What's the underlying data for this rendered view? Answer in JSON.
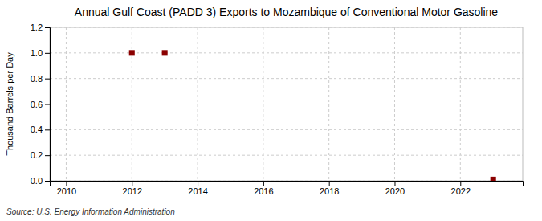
{
  "chart_data": {
    "type": "scatter",
    "title": "Annual Gulf Coast (PADD 3) Exports to Mozambique of Conventional Motor Gasoline",
    "ylabel": "Thousand Barrels per Day",
    "source": "Source: U.S. Energy Information Administration",
    "x": [
      2012,
      2013,
      2023
    ],
    "values": [
      1.0,
      1.0,
      0.01
    ],
    "xlim": [
      2009.5,
      2023.9
    ],
    "xticks": [
      2010,
      2012,
      2014,
      2016,
      2018,
      2020,
      2022
    ],
    "ylim": [
      0.0,
      1.2
    ],
    "yticks": [
      {
        "value": 0.0,
        "label": "0.0"
      },
      0.2,
      0.4,
      0.6,
      0.8,
      {
        "value": 1.0,
        "label": "1.0"
      },
      1.2
    ],
    "color": "#8B0000",
    "marker": "square",
    "grid": true
  }
}
